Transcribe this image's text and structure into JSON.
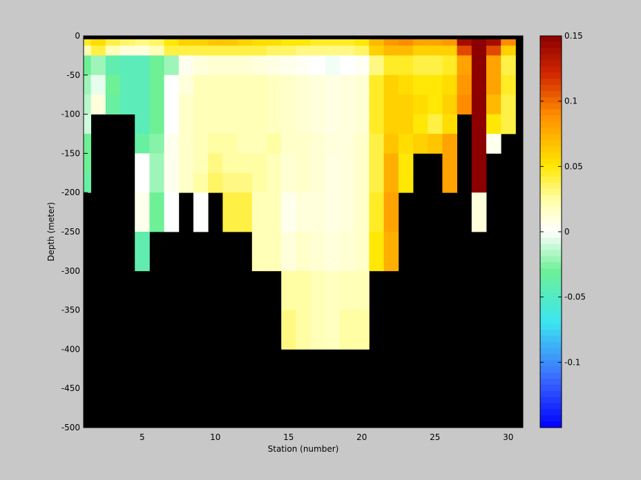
{
  "chart_data": {
    "type": "heatmap",
    "title": "",
    "xlabel": "Station (number)",
    "ylabel": "Depth (meter)",
    "xlim": [
      1,
      31
    ],
    "ylim": [
      -500,
      0
    ],
    "x_ticks": [
      5,
      10,
      15,
      20,
      25,
      30
    ],
    "y_ticks": [
      0,
      -50,
      -100,
      -150,
      -200,
      -250,
      -300,
      -350,
      -400,
      -450,
      -500
    ],
    "colorbar": {
      "position": "right",
      "range": [
        -0.15,
        0.15
      ],
      "ticks": [
        0.15,
        0.1,
        0.05,
        0,
        -0.05,
        -0.1
      ],
      "tick_labels": [
        "0.15",
        "0.1",
        "0.05",
        "0",
        "-0.05",
        "-0.1"
      ]
    },
    "background_color": "#000000",
    "stations": [
      1,
      2,
      3,
      4,
      5,
      6,
      7,
      8,
      9,
      10,
      11,
      12,
      13,
      14,
      15,
      16,
      17,
      18,
      19,
      20,
      21,
      22,
      23,
      24,
      25,
      26,
      27,
      28,
      29,
      30
    ],
    "depth_bins_top": [
      0,
      -12.5,
      -25,
      -50,
      -75,
      -100,
      -125,
      -150,
      -175,
      -200,
      -250,
      -300,
      -350,
      -400
    ],
    "depth_bins_bottom": [
      -12.5,
      -25,
      -50,
      -75,
      -100,
      -125,
      -150,
      -175,
      -200,
      -250,
      -300,
      -350,
      -400,
      -450
    ],
    "values": [
      [
        0.045,
        0.055,
        0.04,
        0.035,
        0.03,
        0.035,
        0.05,
        0.06,
        0.06,
        0.065,
        0.065,
        0.06,
        0.055,
        0.055,
        0.05,
        0.05,
        0.045,
        0.045,
        0.045,
        0.05,
        0.07,
        0.085,
        0.09,
        0.08,
        0.08,
        0.085,
        0.14,
        0.15,
        0.14,
        0.09
      ],
      [
        0.02,
        0.04,
        0.02,
        0.01,
        0.01,
        0.02,
        0.04,
        0.04,
        0.04,
        0.04,
        0.04,
        0.04,
        0.04,
        0.035,
        0.035,
        0.03,
        0.03,
        0.03,
        0.03,
        0.035,
        0.06,
        0.07,
        0.07,
        0.06,
        0.06,
        0.06,
        0.11,
        0.15,
        0.11,
        0.06
      ],
      [
        -0.03,
        -0.02,
        -0.04,
        -0.045,
        -0.045,
        -0.03,
        -0.02,
        0.005,
        0.01,
        0.012,
        0.012,
        0.012,
        0.01,
        0.008,
        0.005,
        0.003,
        0.0,
        -0.003,
        0.0,
        0.003,
        0.03,
        0.045,
        0.045,
        0.04,
        0.04,
        0.045,
        0.08,
        0.15,
        0.08,
        0.04
      ],
      [
        -0.02,
        -0.005,
        -0.03,
        -0.045,
        -0.045,
        -0.03,
        0.0,
        0.01,
        0.02,
        0.02,
        0.02,
        0.02,
        0.02,
        0.018,
        0.015,
        0.012,
        0.01,
        0.008,
        0.01,
        0.012,
        0.045,
        0.06,
        0.055,
        0.05,
        0.05,
        0.055,
        0.085,
        0.15,
        0.08,
        0.045
      ],
      [
        -0.015,
        0.01,
        -0.035,
        -0.045,
        -0.045,
        -0.03,
        0.0,
        0.015,
        0.02,
        0.02,
        0.02,
        0.02,
        0.02,
        0.018,
        0.015,
        0.012,
        0.01,
        0.008,
        0.01,
        0.012,
        0.045,
        0.06,
        0.06,
        0.055,
        0.05,
        0.06,
        0.09,
        0.15,
        0.07,
        0.04
      ],
      [
        -0.01,
        null,
        null,
        null,
        -0.045,
        -0.03,
        0.0,
        0.015,
        0.02,
        0.02,
        0.02,
        0.02,
        0.02,
        0.018,
        0.015,
        0.012,
        0.01,
        0.008,
        0.01,
        0.012,
        0.045,
        0.06,
        0.06,
        0.05,
        0.04,
        0.055,
        null,
        0.15,
        0.05,
        0.04
      ],
      [
        -0.03,
        null,
        null,
        null,
        -0.035,
        -0.025,
        0.005,
        0.015,
        0.02,
        0.025,
        0.025,
        0.02,
        0.02,
        0.025,
        0.015,
        0.015,
        0.012,
        0.01,
        0.01,
        0.015,
        0.04,
        0.065,
        0.055,
        0.06,
        0.065,
        0.08,
        null,
        0.15,
        0.005,
        null
      ],
      [
        -0.03,
        null,
        null,
        null,
        0.0,
        -0.02,
        0.005,
        0.015,
        0.02,
        0.03,
        0.025,
        0.025,
        0.025,
        0.02,
        0.012,
        0.015,
        0.012,
        0.008,
        0.01,
        0.015,
        0.04,
        0.075,
        0.05,
        null,
        null,
        0.08,
        null,
        0.15,
        null,
        null
      ],
      [
        -0.035,
        null,
        null,
        null,
        0.0,
        -0.02,
        0.005,
        0.015,
        0.025,
        0.035,
        0.03,
        0.03,
        0.025,
        0.02,
        0.012,
        0.015,
        0.012,
        0.008,
        0.01,
        0.015,
        0.04,
        0.075,
        0.05,
        null,
        null,
        0.08,
        null,
        0.15,
        null,
        null
      ],
      [
        null,
        null,
        null,
        null,
        0.005,
        -0.03,
        0.0,
        null,
        0.0,
        null,
        0.04,
        0.04,
        0.02,
        0.02,
        0.005,
        0.01,
        0.01,
        0.008,
        0.01,
        0.015,
        0.045,
        0.08,
        null,
        null,
        null,
        null,
        null,
        0.01,
        null,
        null
      ],
      [
        null,
        null,
        null,
        null,
        -0.04,
        null,
        null,
        null,
        null,
        null,
        null,
        null,
        0.02,
        0.02,
        0.01,
        0.015,
        0.012,
        0.01,
        0.012,
        0.015,
        0.05,
        0.075,
        null,
        null,
        null,
        null,
        null,
        null,
        null,
        null
      ],
      [
        null,
        null,
        null,
        null,
        null,
        null,
        null,
        null,
        null,
        null,
        null,
        null,
        null,
        null,
        0.025,
        0.025,
        0.02,
        0.018,
        0.02,
        0.02,
        null,
        null,
        null,
        null,
        null,
        null,
        null,
        null,
        null,
        null
      ],
      [
        null,
        null,
        null,
        null,
        null,
        null,
        null,
        null,
        null,
        null,
        null,
        null,
        null,
        null,
        0.03,
        0.025,
        0.02,
        0.018,
        0.025,
        0.025,
        null,
        null,
        null,
        null,
        null,
        null,
        null,
        null,
        null,
        null
      ],
      [
        null,
        null,
        null,
        null,
        null,
        null,
        null,
        null,
        null,
        null,
        null,
        null,
        null,
        null,
        null,
        null,
        null,
        null,
        null,
        null,
        null,
        null,
        null,
        null,
        null,
        null,
        null,
        null,
        null,
        null
      ]
    ]
  }
}
